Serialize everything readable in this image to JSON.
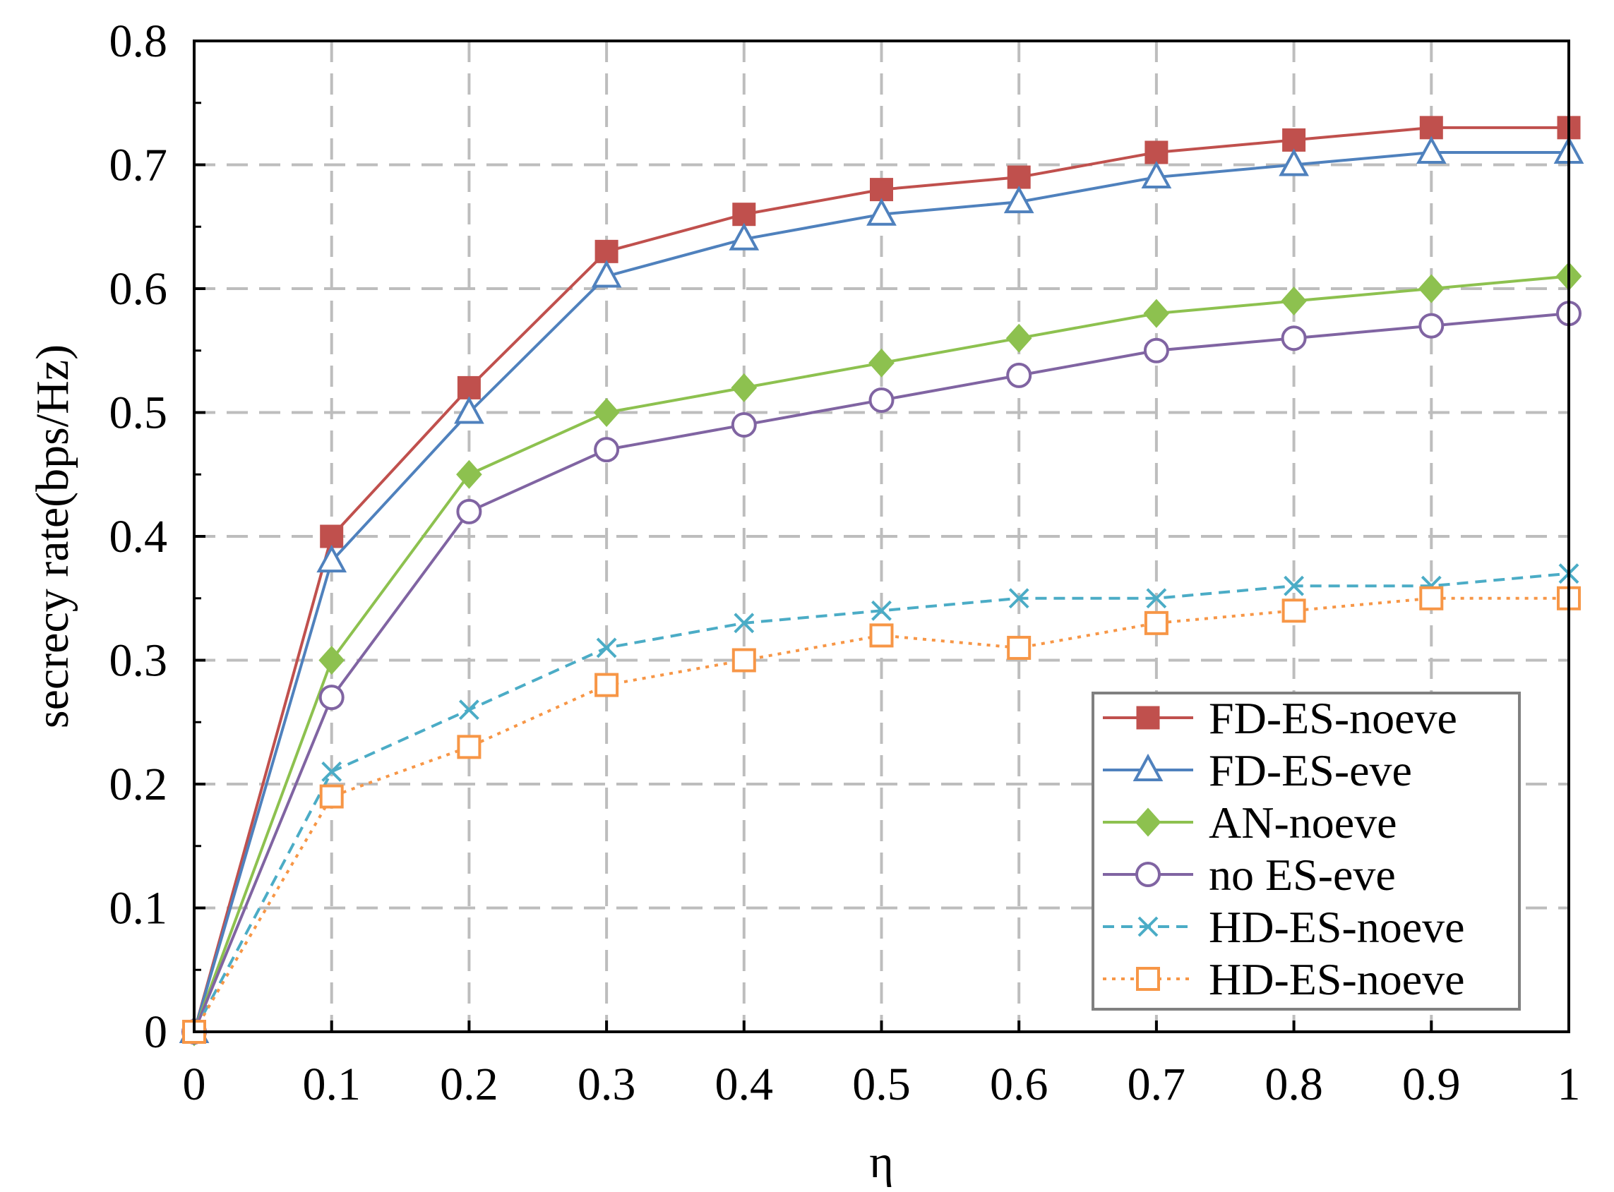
{
  "chart_data": {
    "type": "line",
    "title": "",
    "xlabel": "η",
    "ylabel": "secrecy rate(bps/Hz)",
    "xlim": [
      0,
      1
    ],
    "ylim": [
      0,
      0.8
    ],
    "x": [
      0,
      0.1,
      0.2,
      0.3,
      0.4,
      0.5,
      0.6,
      0.7,
      0.8,
      0.9,
      1
    ],
    "x_tick_labels": [
      "0",
      "0.1",
      "0.2",
      "0.3",
      "0.4",
      "0.5",
      "0.6",
      "0.7",
      "0.8",
      "0.9",
      "1"
    ],
    "y_tick_labels": [
      "0",
      "0.1",
      "0.2",
      "0.3",
      "0.4",
      "0.5",
      "0.6",
      "0.7",
      "0.8"
    ],
    "grid": true,
    "legend_position": "bottom-right",
    "series": [
      {
        "name": "FD-ES-noeve",
        "color": "#c0504d",
        "marker": "filled-square",
        "line": "solid",
        "values": [
          0,
          0.4,
          0.52,
          0.63,
          0.66,
          0.68,
          0.69,
          0.71,
          0.72,
          0.73,
          0.73
        ]
      },
      {
        "name": "FD-ES-eve",
        "color": "#4f81bd",
        "marker": "open-triangle",
        "line": "solid",
        "values": [
          0,
          0.38,
          0.5,
          0.61,
          0.64,
          0.66,
          0.67,
          0.69,
          0.7,
          0.71,
          0.71
        ]
      },
      {
        "name": "AN-noeve",
        "color": "#8dc14f",
        "marker": "filled-diamond",
        "line": "solid",
        "values": [
          0,
          0.3,
          0.45,
          0.5,
          0.52,
          0.54,
          0.56,
          0.58,
          0.59,
          0.6,
          0.61
        ]
      },
      {
        "name": "no ES-eve",
        "color": "#8064a2",
        "marker": "open-circle",
        "line": "solid",
        "values": [
          0,
          0.27,
          0.42,
          0.47,
          0.49,
          0.51,
          0.53,
          0.55,
          0.56,
          0.57,
          0.58
        ]
      },
      {
        "name": "HD-ES-noeve",
        "color": "#4bacc6",
        "marker": "x",
        "line": "dashed",
        "values": [
          0,
          0.21,
          0.26,
          0.31,
          0.33,
          0.34,
          0.35,
          0.35,
          0.36,
          0.36,
          0.37
        ]
      },
      {
        "name": "HD-ES-noeve",
        "color": "#f79646",
        "marker": "open-square",
        "line": "dotted",
        "values": [
          0,
          0.19,
          0.23,
          0.28,
          0.3,
          0.32,
          0.31,
          0.33,
          0.34,
          0.35,
          0.35
        ]
      }
    ]
  }
}
